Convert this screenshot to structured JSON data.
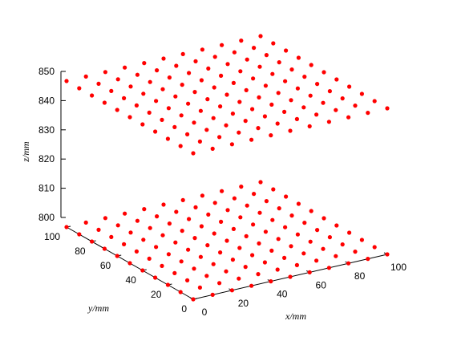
{
  "chart_data": {
    "type": "scatter3d",
    "xlabel": "x/mm",
    "ylabel": "y/mm",
    "zlabel": "z/mm",
    "xlim": [
      0,
      100
    ],
    "ylim": [
      0,
      100
    ],
    "zlim": [
      800,
      850
    ],
    "x_ticks": [
      0,
      20,
      40,
      60,
      80,
      100
    ],
    "y_ticks": [
      0,
      20,
      40,
      60,
      80,
      100
    ],
    "z_ticks": [
      800,
      810,
      820,
      830,
      840,
      850
    ],
    "marker_color": "#ff0000",
    "grid": false,
    "series": [
      {
        "grid_x": [
          0,
          10,
          20,
          30,
          40,
          50,
          60,
          70,
          80,
          90,
          100
        ],
        "grid_y": [
          0,
          10,
          20,
          30,
          40,
          50,
          60,
          70,
          80,
          90,
          100
        ],
        "z": 800
      },
      {
        "grid_x": [
          0,
          10,
          20,
          30,
          40,
          50,
          60,
          70,
          80,
          90,
          100
        ],
        "grid_y": [
          0,
          10,
          20,
          30,
          40,
          50,
          60,
          70,
          80,
          90,
          100
        ],
        "z": 850
      }
    ]
  }
}
